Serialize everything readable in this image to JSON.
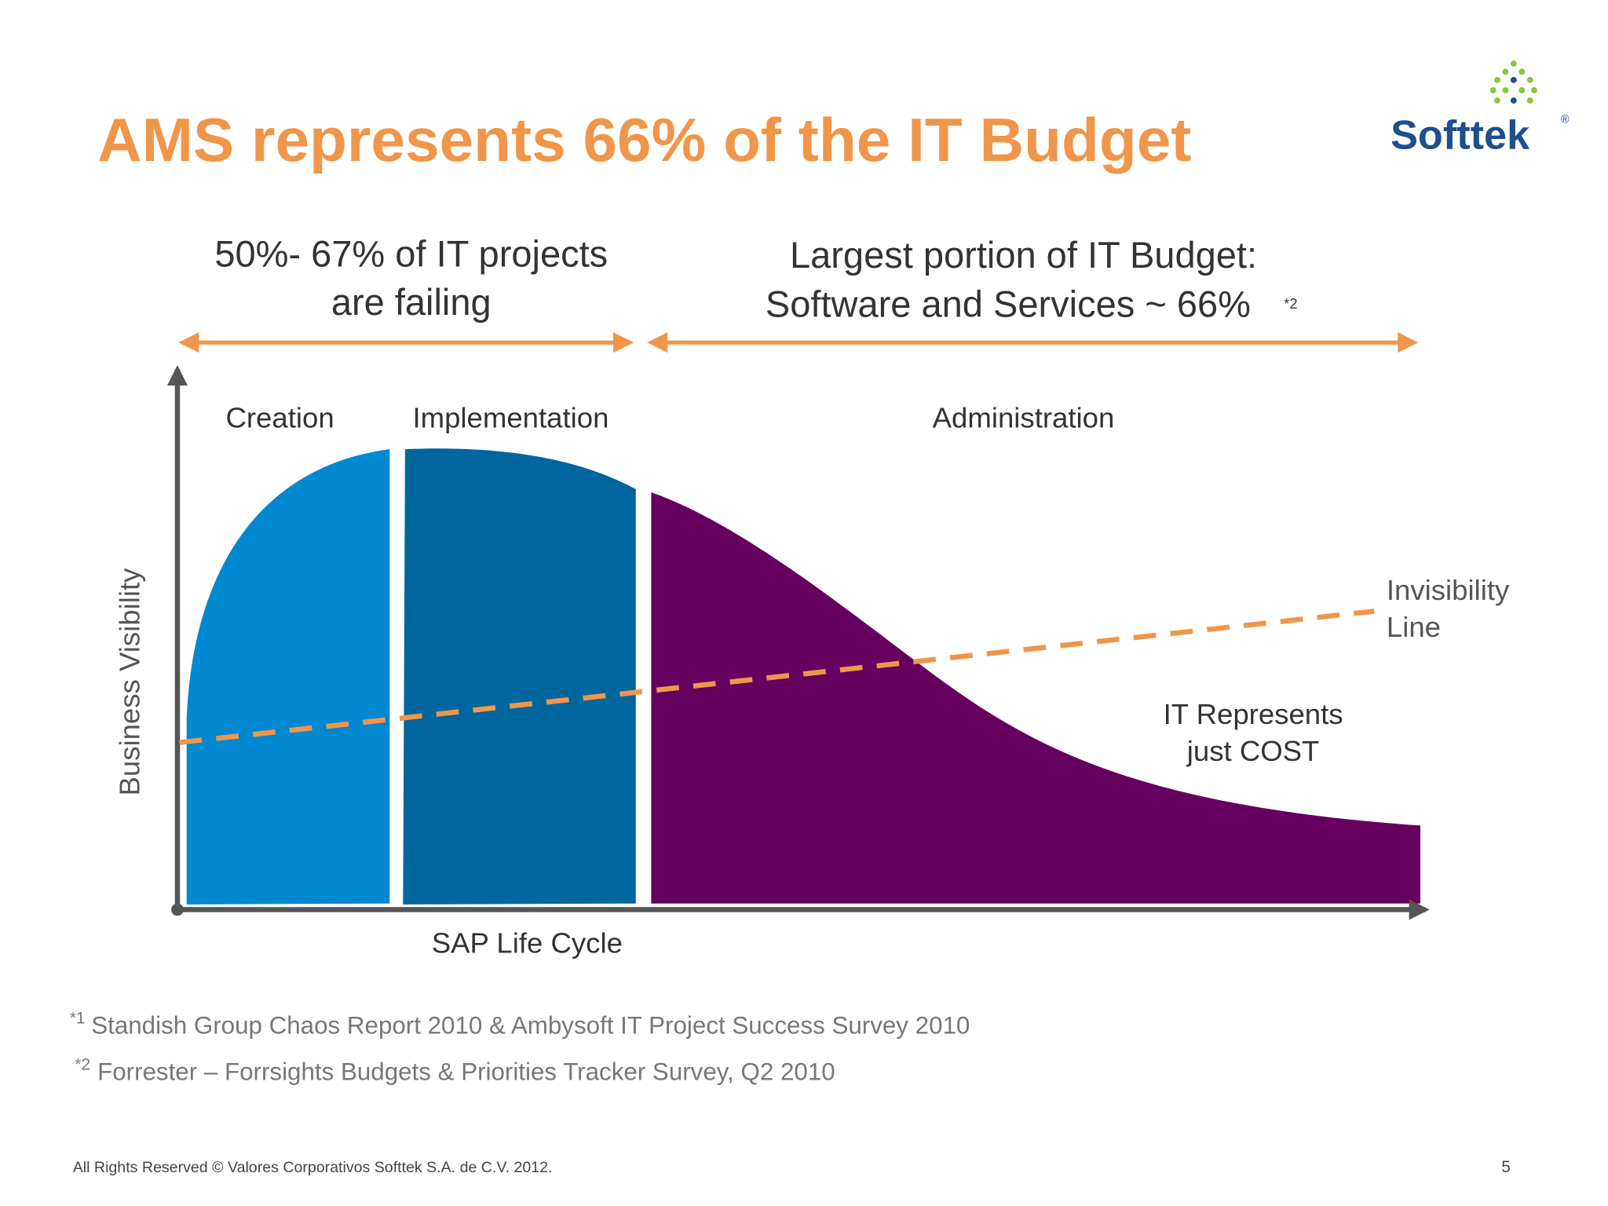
{
  "header": {
    "title": "AMS represents 66% of the IT Budget",
    "logo": "Softtek",
    "logo_mark": "®"
  },
  "banners": {
    "left": {
      "line1": "50%- 67%  of IT projects",
      "line2": "are failing"
    },
    "right": {
      "line1": "Largest portion of IT Budget:",
      "line2": "Software and Services ~ 66%",
      "note": "*2"
    }
  },
  "phases": [
    "Creation",
    "Implementation",
    "Administration"
  ],
  "axes": {
    "y": "Business Visibility",
    "x": "SAP Life Cycle"
  },
  "annotations": {
    "invisibility": [
      "Invisibility",
      "Line"
    ],
    "cost": [
      "IT Represents",
      "just COST"
    ]
  },
  "footnotes": [
    {
      "mark": "*1",
      "text": "Standish Group Chaos Report 2010 & Ambysoft IT Project Success Survey 2010"
    },
    {
      "mark": "*2",
      "text": "Forrester – Forrsights Budgets & Priorities Tracker Survey, Q2 2010"
    }
  ],
  "footer": {
    "copyright": "All Rights Reserved © Valores Corporativos Softtek S.A. de C.V. 2012.",
    "page": "5"
  }
}
